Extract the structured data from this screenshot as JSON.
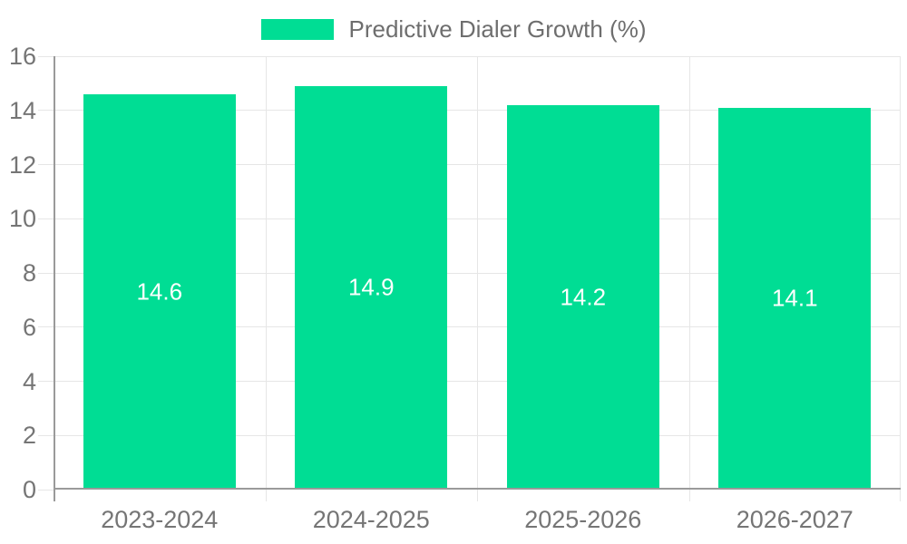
{
  "chart_data": {
    "type": "bar",
    "title": "Predictive Dialer Growth (%)",
    "legend": {
      "position": "top",
      "label": "Predictive Dialer Growth (%)"
    },
    "categories": [
      "2023-2024",
      "2024-2025",
      "2025-2026",
      "2026-2027"
    ],
    "values": [
      14.6,
      14.9,
      14.2,
      14.1
    ],
    "value_labels": [
      "14.6",
      "14.9",
      "14.2",
      "14.1"
    ],
    "xlabel": "",
    "ylabel": "",
    "ylim": [
      0,
      16
    ],
    "yticks": [
      0,
      2,
      4,
      6,
      8,
      10,
      12,
      14,
      16
    ],
    "grid": true,
    "colors": {
      "bar": "#00DD94",
      "value_label": "#FFFFFF",
      "grid": "#E6E6E6",
      "axis": "#9A9A9A",
      "tick_text": "#757575",
      "legend_text": "#6E6E6E",
      "background": "#FFFFFF"
    }
  }
}
